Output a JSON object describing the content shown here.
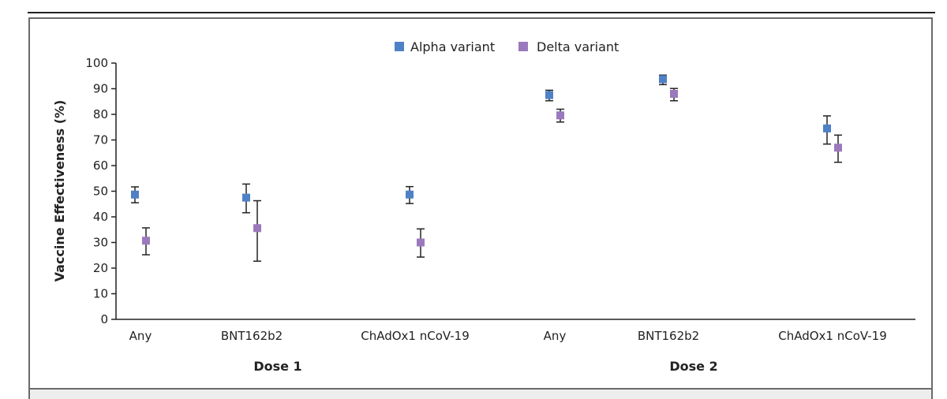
{
  "chart_data": {
    "type": "scatter",
    "title": "",
    "ylabel": "Vaccine Effectiveness (%)",
    "xlabel": "",
    "ylim": [
      0,
      100
    ],
    "yticks": [
      0,
      10,
      20,
      30,
      40,
      50,
      60,
      70,
      80,
      90,
      100
    ],
    "categories": [
      "Any",
      "BNT162b2",
      "ChAdOx1 nCoV-19",
      "Any",
      "BNT162b2",
      "ChAdOx1 nCoV-19"
    ],
    "groups": [
      {
        "label": "Dose 1",
        "categories": [
          0,
          1,
          2
        ]
      },
      {
        "label": "Dose 2",
        "categories": [
          3,
          4,
          5
        ]
      }
    ],
    "series": [
      {
        "name": "Alpha variant",
        "color": "#4f81c7",
        "values": [
          48.7,
          47.5,
          48.7,
          87.5,
          93.7,
          74.5
        ],
        "ci_low": [
          45.5,
          41.6,
          45.2,
          85.3,
          91.6,
          68.4
        ],
        "ci_high": [
          51.7,
          52.8,
          51.8,
          89.4,
          95.3,
          79.4
        ]
      },
      {
        "name": "Delta variant",
        "color": "#9b79bd",
        "values": [
          30.7,
          35.6,
          30.0,
          79.6,
          88.0,
          67.0
        ],
        "ci_low": [
          25.2,
          22.7,
          24.3,
          77.0,
          85.3,
          61.3
        ],
        "ci_high": [
          35.7,
          46.3,
          35.3,
          82.0,
          90.1,
          71.9
        ]
      }
    ],
    "legend_position": "top-center"
  }
}
